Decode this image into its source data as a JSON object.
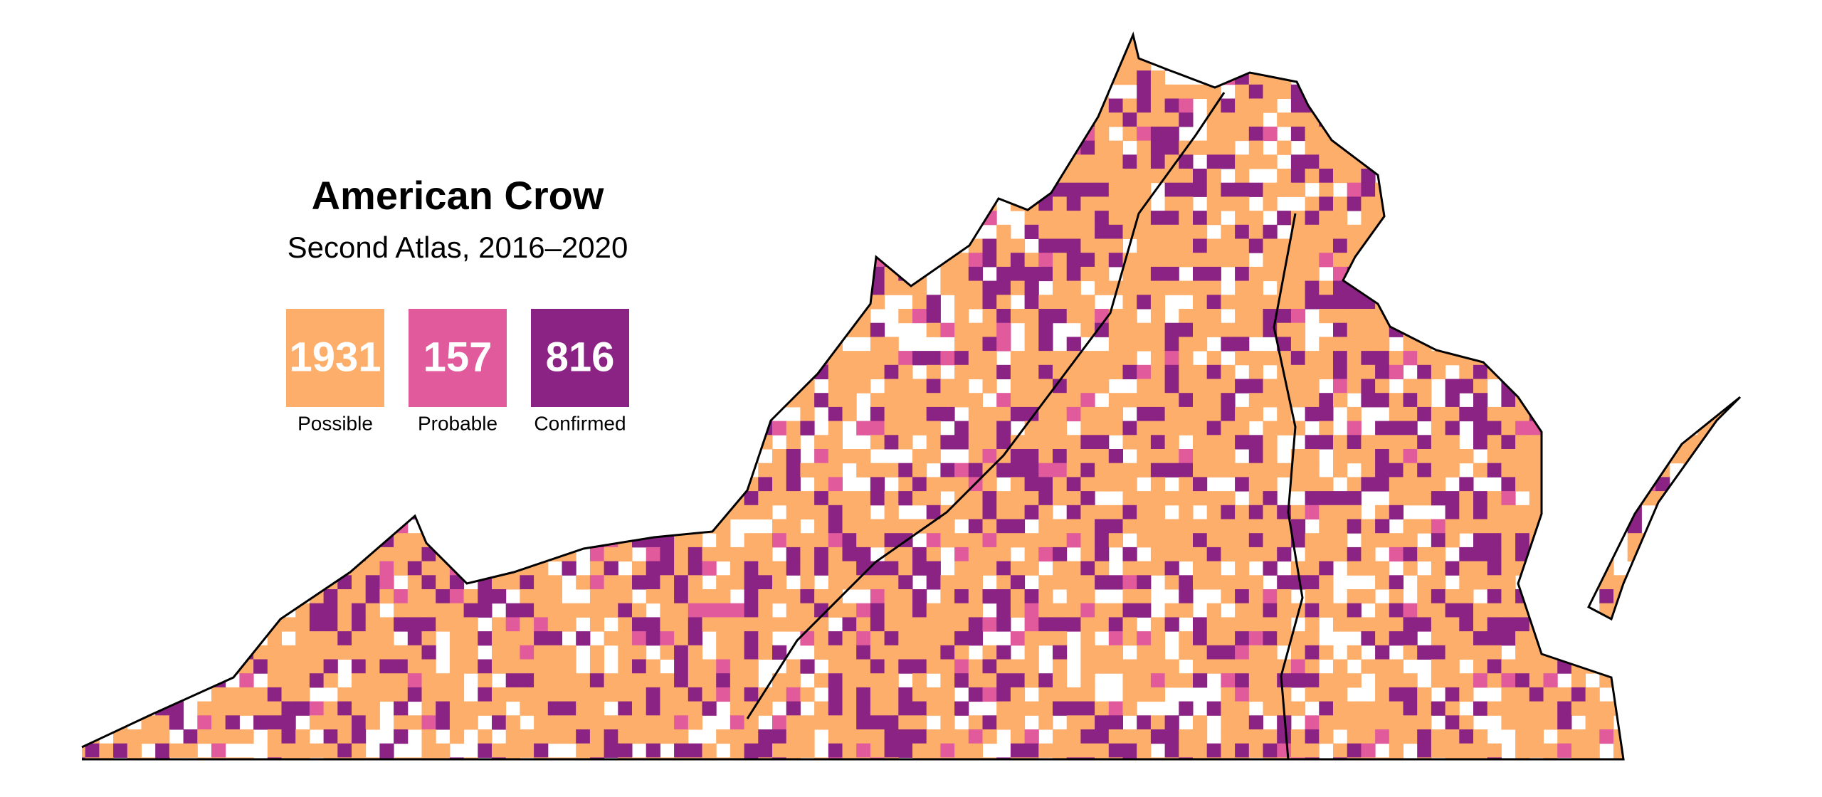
{
  "title": "American Crow",
  "subtitle": "Second Atlas, 2016–2020",
  "legend": [
    {
      "count": 1931,
      "label": "Possible",
      "color": "#fdae6b"
    },
    {
      "count": 157,
      "label": "Probable",
      "color": "#e05a9c"
    },
    {
      "count": 816,
      "label": "Confirmed",
      "color": "#8a2383"
    }
  ]
}
